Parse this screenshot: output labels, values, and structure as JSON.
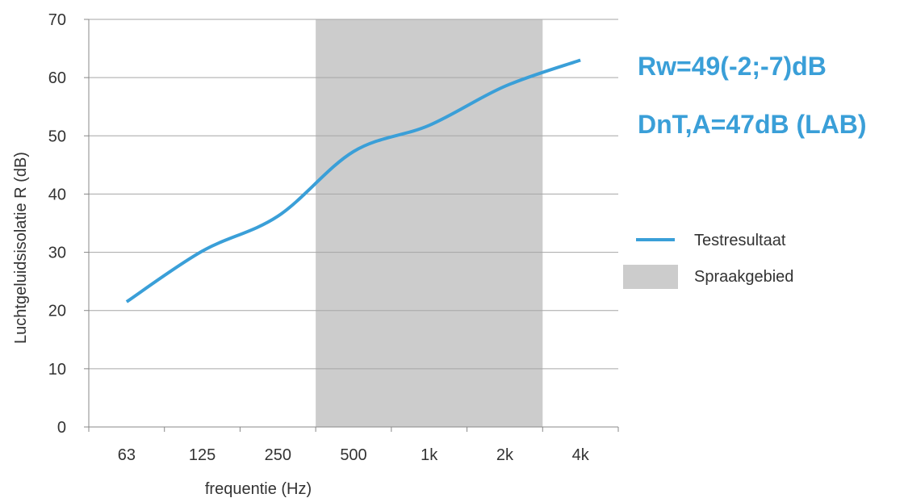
{
  "chart_data": {
    "type": "line",
    "categories": [
      "63",
      "125",
      "250",
      "500",
      "1k",
      "2k",
      "4k"
    ],
    "series": [
      {
        "name": "Testresultaat",
        "color": "#3a9fd8",
        "values": [
          21.5,
          30.2,
          36.2,
          47.3,
          51.8,
          58.5,
          63.0
        ]
      }
    ],
    "bands": [
      {
        "name": "Spraakgebied",
        "color": "#cccccc",
        "from": "500",
        "to": "2k"
      }
    ],
    "ylim": [
      0,
      70
    ],
    "yticks": [
      0,
      10,
      20,
      30,
      40,
      50,
      60,
      70
    ],
    "xlabel": "frequentie (Hz)",
    "ylabel": "Luchtgeluidsisolatie R (dB)",
    "grid": "horizontal",
    "legend_position": "right",
    "annotations": [
      "Rw=49(-2;-7)dB",
      "DnT,A=47dB (LAB)"
    ],
    "annotation_color": "#3a9fd8"
  }
}
